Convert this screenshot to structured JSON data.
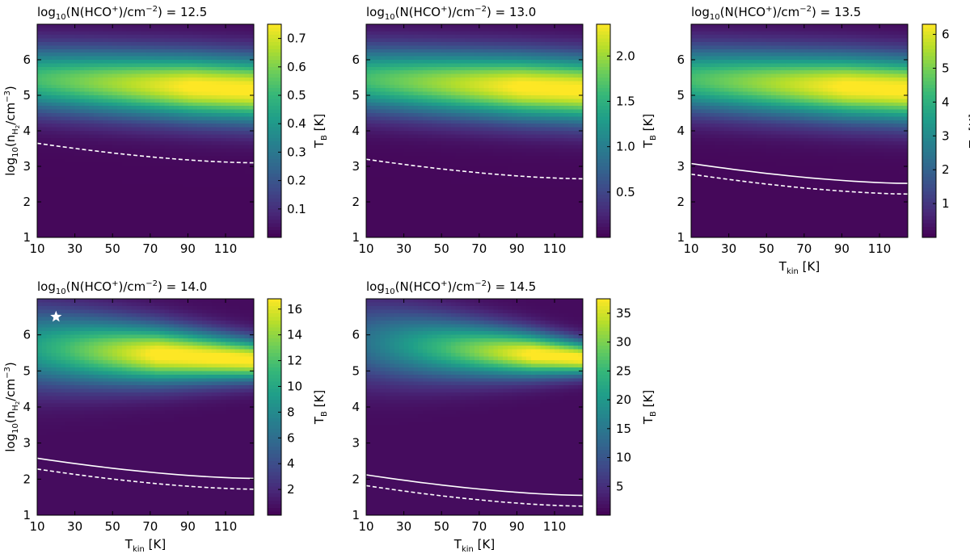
{
  "chart_data": [
    {
      "type": "heatmap",
      "title_prefix": "log",
      "title_sub": "10",
      "title_main": "(N(HCO",
      "title_sup1": "+",
      "title_mid": ")/cm",
      "title_sup2": "−2",
      "title_value": ") = 12.5",
      "xlabel": "",
      "ylabel": "log10(nH2/cm−3)",
      "xlim": [
        10,
        125
      ],
      "ylim": [
        1,
        7
      ],
      "x_ticks": [
        "10",
        "30",
        "50",
        "70",
        "90",
        "110"
      ],
      "y_ticks": [
        "1",
        "2",
        "3",
        "4",
        "5",
        "6"
      ],
      "colorbar_label": "T_B [K]",
      "colorbar_range": [
        0,
        0.75
      ],
      "colorbar_ticks": [
        "0.1",
        "0.2",
        "0.3",
        "0.4",
        "0.5",
        "0.6",
        "0.7"
      ],
      "colorbar_tick_values": [
        0.1,
        0.2,
        0.3,
        0.4,
        0.5,
        0.6,
        0.7
      ],
      "peak_density": 5.1,
      "solid_line": null,
      "dashed_line": {
        "x": [
          10,
          125
        ],
        "y": [
          3.65,
          3.1
        ]
      },
      "star": null
    },
    {
      "type": "heatmap",
      "title_prefix": "log",
      "title_sub": "10",
      "title_main": "(N(HCO",
      "title_sup1": "+",
      "title_mid": ")/cm",
      "title_sup2": "−2",
      "title_value": ") = 13.0",
      "xlabel": "",
      "ylabel": "",
      "xlim": [
        10,
        125
      ],
      "ylim": [
        1,
        7
      ],
      "x_ticks": [
        "10",
        "30",
        "50",
        "70",
        "90",
        "110"
      ],
      "y_ticks": [
        "1",
        "2",
        "3",
        "4",
        "5",
        "6"
      ],
      "colorbar_label": "T_B [K]",
      "colorbar_range": [
        0,
        2.35
      ],
      "colorbar_ticks": [
        "0.5",
        "1.0",
        "1.5",
        "2.0"
      ],
      "colorbar_tick_values": [
        0.5,
        1.0,
        1.5,
        2.0
      ],
      "peak_density": 5.1,
      "solid_line": null,
      "dashed_line": {
        "x": [
          10,
          125
        ],
        "y": [
          3.2,
          2.65
        ]
      },
      "star": null
    },
    {
      "type": "heatmap",
      "title_prefix": "log",
      "title_sub": "10",
      "title_main": "(N(HCO",
      "title_sup1": "+",
      "title_mid": ")/cm",
      "title_sup2": "−2",
      "title_value": ") = 13.5",
      "xlabel": "Tkin [K]",
      "ylabel": "",
      "xlim": [
        10,
        125
      ],
      "ylim": [
        1,
        7
      ],
      "x_ticks": [
        "10",
        "30",
        "50",
        "70",
        "90",
        "110"
      ],
      "y_ticks": [
        "1",
        "2",
        "3",
        "4",
        "5",
        "6"
      ],
      "colorbar_label": "T_B [K]",
      "colorbar_range": [
        0,
        6.3
      ],
      "colorbar_ticks": [
        "1",
        "2",
        "3",
        "4",
        "5",
        "6"
      ],
      "colorbar_tick_values": [
        1,
        2,
        3,
        4,
        5,
        6
      ],
      "peak_density": 5.1,
      "solid_line": {
        "x": [
          10,
          125
        ],
        "y": [
          3.08,
          2.52
        ]
      },
      "dashed_line": {
        "x": [
          10,
          125
        ],
        "y": [
          2.78,
          2.22
        ]
      },
      "star": null
    },
    {
      "type": "heatmap",
      "title_prefix": "log",
      "title_sub": "10",
      "title_main": "(N(HCO",
      "title_sup1": "+",
      "title_mid": ")/cm",
      "title_sup2": "−2",
      "title_value": ") = 14.0",
      "xlabel": "Tkin [K]",
      "ylabel": "log10(nH2/cm−3)",
      "xlim": [
        10,
        125
      ],
      "ylim": [
        1,
        7
      ],
      "x_ticks": [
        "10",
        "30",
        "50",
        "70",
        "90",
        "110"
      ],
      "y_ticks": [
        "1",
        "2",
        "3",
        "4",
        "5",
        "6"
      ],
      "colorbar_label": "T_B [K]",
      "colorbar_range": [
        0,
        16.8
      ],
      "colorbar_ticks": [
        "2",
        "4",
        "6",
        "8",
        "10",
        "12",
        "14",
        "16"
      ],
      "colorbar_tick_values": [
        2,
        4,
        6,
        8,
        10,
        12,
        14,
        16
      ],
      "peak_density": 5.25,
      "solid_line": {
        "x": [
          10,
          125
        ],
        "y": [
          2.58,
          2.02
        ]
      },
      "dashed_line": {
        "x": [
          10,
          125
        ],
        "y": [
          2.28,
          1.72
        ]
      },
      "star": {
        "x": 20,
        "y": 6.5
      }
    },
    {
      "type": "heatmap",
      "title_prefix": "log",
      "title_sub": "10",
      "title_main": "(N(HCO",
      "title_sup1": "+",
      "title_mid": ")/cm",
      "title_sup2": "−2",
      "title_value": ") = 14.5",
      "xlabel": "Tkin [K]",
      "ylabel": "",
      "xlim": [
        10,
        125
      ],
      "ylim": [
        1,
        7
      ],
      "x_ticks": [
        "10",
        "30",
        "50",
        "70",
        "90",
        "110"
      ],
      "y_ticks": [
        "1",
        "2",
        "3",
        "4",
        "5",
        "6"
      ],
      "colorbar_label": "T_B [K]",
      "colorbar_range": [
        0,
        37.5
      ],
      "colorbar_ticks": [
        "5",
        "10",
        "15",
        "20",
        "25",
        "30",
        "35"
      ],
      "colorbar_tick_values": [
        5,
        10,
        15,
        20,
        25,
        30,
        35
      ],
      "peak_density": 5.4,
      "solid_line": {
        "x": [
          10,
          125
        ],
        "y": [
          2.12,
          1.55
        ]
      },
      "dashed_line": {
        "x": [
          10,
          125
        ],
        "y": [
          1.82,
          1.25
        ]
      },
      "star": null
    }
  ],
  "colormap": [
    "#440154",
    "#482878",
    "#3e4989",
    "#31688e",
    "#26828e",
    "#1f9e89",
    "#35b779",
    "#6ece58",
    "#b5de2b",
    "#fde725"
  ]
}
